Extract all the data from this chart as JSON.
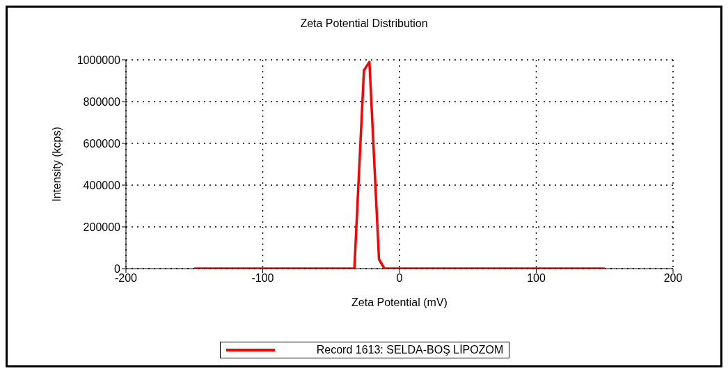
{
  "chart_data": {
    "type": "line",
    "title": "Zeta Potential Distribution",
    "xlabel": "Zeta Potential (mV)",
    "ylabel": "Intensity (kcps)",
    "x": [
      -150,
      -33,
      -26,
      -22,
      -15,
      -11,
      150
    ],
    "series": [
      {
        "name": "Record 1613: SELDA-BOŞ LİPOZOM",
        "color": "#ff0000",
        "values": [
          0,
          0,
          950000,
          990000,
          45000,
          0,
          0
        ]
      }
    ],
    "xlim": [
      -200,
      200
    ],
    "xticks": [
      -200,
      -100,
      0,
      100,
      200
    ],
    "ylim": [
      0,
      1000000
    ],
    "yticks": [
      0,
      200000,
      400000,
      600000,
      800000,
      1000000
    ],
    "grid": true,
    "legend": "bottom",
    "marker": "none",
    "line_style": "solid"
  }
}
